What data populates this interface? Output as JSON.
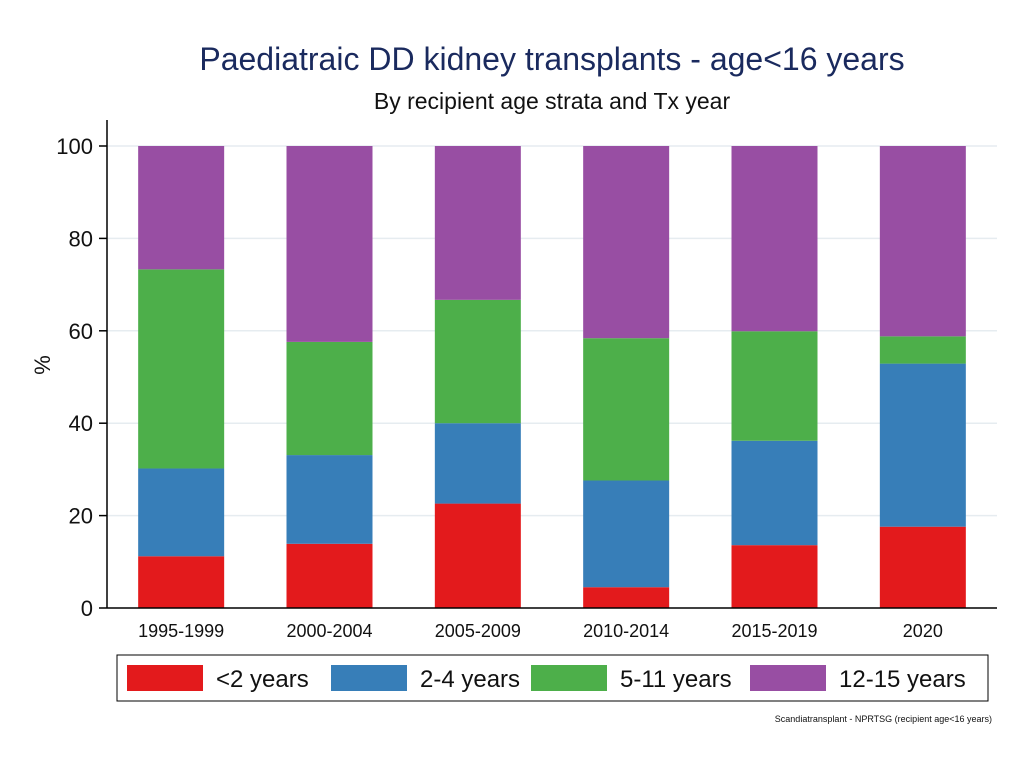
{
  "chart_data": {
    "type": "bar",
    "stacked": true,
    "title": "Paediatraic DD kidney transplants - age<16 years",
    "subtitle": "By recipient age strata and Tx year",
    "xlabel": "",
    "ylabel": "%",
    "ylim": [
      0,
      100
    ],
    "yticks": [
      0,
      20,
      40,
      60,
      80,
      100
    ],
    "grid": true,
    "legend_position": "bottom",
    "categories": [
      "1995-1999",
      "2000-2004",
      "2005-2009",
      "2010-2014",
      "2015-2019",
      "2020"
    ],
    "series": [
      {
        "name": "<2 years",
        "color": "#e31a1c",
        "values": [
          11.2,
          13.9,
          22.6,
          4.5,
          13.6,
          17.6
        ]
      },
      {
        "name": "2-4 years",
        "color": "#377eb8",
        "values": [
          19.0,
          19.2,
          17.4,
          23.1,
          22.6,
          35.3
        ]
      },
      {
        "name": "5-11 years",
        "color": "#4daf4a",
        "values": [
          43.1,
          24.5,
          26.7,
          30.8,
          23.7,
          5.9
        ]
      },
      {
        "name": "12-15 years",
        "color": "#984ea3",
        "values": [
          26.7,
          42.4,
          33.3,
          41.6,
          40.1,
          41.2
        ]
      }
    ],
    "source_note": "Scandiatransplant - NPRTSG (recipient age<16 years)"
  }
}
